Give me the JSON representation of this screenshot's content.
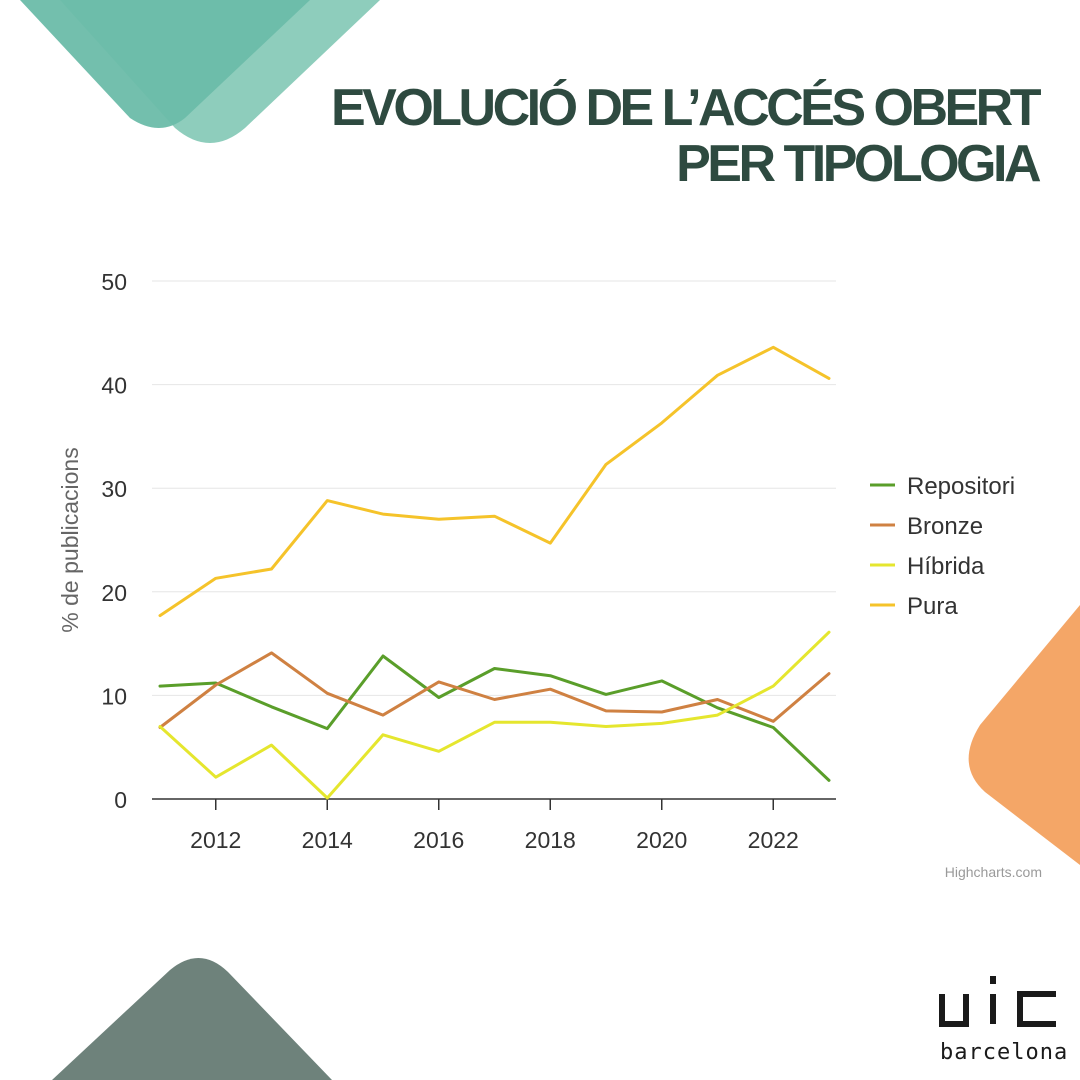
{
  "header": {
    "title_line1": "EVOLUCIÓ DE L’ACCÉS OBERT",
    "title_line2": "PER TIPOLOGIA"
  },
  "footer": {
    "credits": "Highcharts.com",
    "logo_brand": "uic",
    "logo_text": "barcelona"
  },
  "colors": {
    "repositori": "#5a9e2a",
    "bronze": "#cf8142",
    "hibrida": "#e5e62e",
    "pura": "#f5c32a",
    "title": "#2e4a40",
    "deco_teal": "#6bbca9",
    "deco_teal_light": "#8ecdbc",
    "deco_grey": "#6e827b",
    "deco_orange": "#f4a667"
  },
  "chart_data": {
    "type": "line",
    "title": "EVOLUCIÓ DE L’ACCÉS OBERT PER TIPOLOGIA",
    "xlabel": "",
    "ylabel": "% de publicacions",
    "x": [
      2011,
      2012,
      2013,
      2014,
      2015,
      2016,
      2017,
      2018,
      2019,
      2020,
      2021,
      2022,
      2023
    ],
    "xticks": [
      2012,
      2014,
      2016,
      2018,
      2020,
      2022
    ],
    "xlim": [
      2011,
      2023
    ],
    "yticks": [
      0,
      10,
      20,
      30,
      40,
      50
    ],
    "ylim": [
      0,
      50
    ],
    "grid": true,
    "legend_position": "right",
    "series": [
      {
        "name": "Repositori",
        "color": "#5a9e2a",
        "values": [
          10.9,
          11.2,
          8.9,
          6.8,
          13.8,
          9.8,
          12.6,
          11.9,
          10.1,
          11.4,
          8.8,
          6.9,
          1.8
        ]
      },
      {
        "name": "Bronze",
        "color": "#cf8142",
        "values": [
          6.9,
          11.0,
          14.1,
          10.2,
          8.1,
          11.3,
          9.6,
          10.6,
          8.5,
          8.4,
          9.6,
          7.5,
          12.1
        ]
      },
      {
        "name": "Híbrida",
        "color": "#e5e62e",
        "values": [
          7.0,
          2.1,
          5.2,
          0.1,
          6.2,
          4.6,
          7.4,
          7.4,
          7.0,
          7.3,
          8.1,
          10.9,
          16.1
        ]
      },
      {
        "name": "Pura",
        "color": "#f5c32a",
        "values": [
          17.7,
          21.3,
          22.2,
          28.8,
          27.5,
          27.0,
          27.3,
          24.7,
          32.3,
          36.3,
          40.9,
          43.6,
          40.6
        ]
      }
    ]
  }
}
